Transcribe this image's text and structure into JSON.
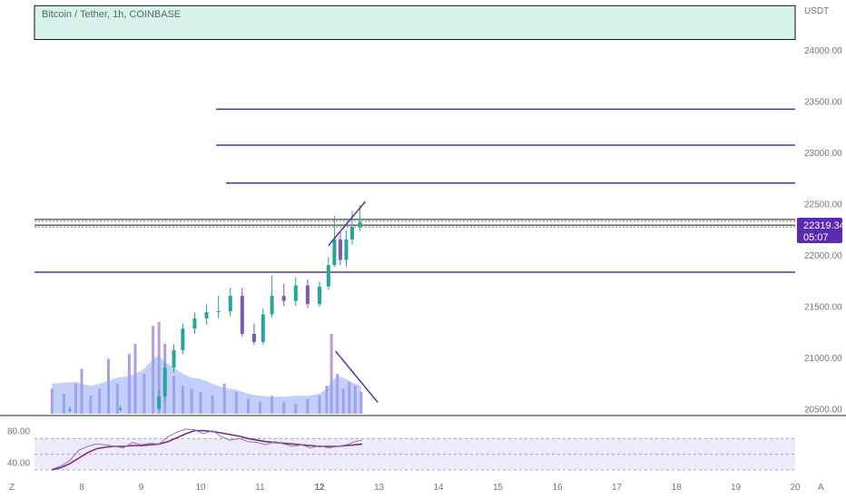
{
  "header": {
    "symbol": "Bitcoin / Tether, 1h, COINBASE",
    "currency": "USDT"
  },
  "price_tag": {
    "price": "22319.34",
    "countdown": "05:07"
  },
  "corner": {
    "left": "Z",
    "right": "A"
  },
  "colors": {
    "up": "#26a69a",
    "down": "#7e57c2",
    "level": "#5b2ab2",
    "zone_fill": "#d6f3ec",
    "volume_ma": "#8ea7f5",
    "volume_bar": "#a78bd8",
    "rsi": "#7b2f6a",
    "rsi_band": "#efeaf9"
  },
  "chart_data": [
    {
      "type": "candlestick",
      "title": "Bitcoin / Tether, 1h, COINBASE",
      "y_unit": "USDT",
      "ylim": [
        20450,
        24450
      ],
      "x_ticks": [
        "8",
        "9",
        "10",
        "11",
        "12",
        "13",
        "14",
        "15",
        "16",
        "17",
        "18",
        "19",
        "20"
      ],
      "y_ticks": [
        "24000.00",
        "23500.00",
        "23000.00",
        "22500.00",
        "22000.00",
        "21500.00",
        "21000.00",
        "20500.00"
      ],
      "last_price": 22319.34,
      "key_zone": [
        24100,
        24430
      ],
      "horizontal_levels": [
        23420,
        23070,
        22700,
        21830
      ],
      "price_lines": [
        22345,
        22290
      ],
      "series": [
        {
          "x": [
            7.8,
            8.65,
            9.3,
            9.4,
            9.55,
            9.7,
            9.9,
            10.1,
            10.3,
            10.5,
            10.7,
            10.9,
            11.05,
            11.2,
            11.4,
            11.6,
            11.8,
            12.0,
            12.15,
            12.25,
            12.35,
            12.45,
            12.55,
            12.68
          ],
          "open": [
            20480,
            20490,
            20500,
            20620,
            20900,
            21070,
            21280,
            21380,
            21440,
            21450,
            21600,
            21230,
            21150,
            21420,
            21600,
            21550,
            21700,
            21520,
            21690,
            21900,
            22150,
            21950,
            22150,
            22270
          ],
          "close": [
            20490,
            20500,
            20620,
            20900,
            21070,
            21280,
            21380,
            21440,
            21450,
            21600,
            21230,
            21150,
            21420,
            21600,
            21550,
            21700,
            21520,
            21690,
            21900,
            22150,
            21950,
            22150,
            22270,
            22319.34
          ],
          "high": [
            20520,
            20530,
            20680,
            20950,
            21130,
            21330,
            21440,
            21520,
            21600,
            21680,
            21680,
            21330,
            21480,
            21800,
            21720,
            21780,
            21760,
            21740,
            21980,
            22380,
            22220,
            22240,
            22430,
            22480
          ],
          "low": [
            20460,
            20470,
            20480,
            20580,
            20850,
            21030,
            21230,
            21320,
            21380,
            21400,
            21200,
            21120,
            21120,
            21390,
            21500,
            21500,
            21480,
            21490,
            21660,
            21880,
            21900,
            21880,
            22100,
            22230
          ]
        }
      ],
      "trendlines": [
        {
          "x": [
            12.15,
            12.77
          ],
          "y": [
            22090,
            22520
          ]
        },
        {
          "x": [
            12.27,
            12.98
          ],
          "y": [
            21060,
            20560
          ]
        }
      ]
    },
    {
      "type": "bar",
      "name": "volume",
      "x": [
        7.5,
        7.7,
        7.9,
        8.0,
        8.15,
        8.3,
        8.45,
        8.6,
        8.8,
        8.9,
        9.05,
        9.2,
        9.3,
        9.4,
        9.55,
        9.7,
        9.85,
        10.0,
        10.2,
        10.4,
        10.6,
        10.8,
        11.0,
        11.2,
        11.4,
        11.6,
        11.8,
        12.0,
        12.12,
        12.2,
        12.3,
        12.4,
        12.5,
        12.6,
        12.7
      ],
      "values": [
        25,
        20,
        30,
        45,
        18,
        25,
        55,
        30,
        60,
        70,
        40,
        88,
        92,
        70,
        38,
        28,
        25,
        22,
        18,
        30,
        22,
        15,
        12,
        18,
        12,
        10,
        15,
        18,
        28,
        80,
        40,
        25,
        32,
        28,
        22
      ],
      "moving_average": [
        30,
        31,
        32,
        30,
        28,
        30,
        33,
        36,
        38,
        40,
        45,
        55,
        58,
        52,
        46,
        40,
        36,
        35,
        30,
        26,
        24,
        20,
        18,
        17,
        17,
        18,
        18,
        20,
        25,
        32,
        38,
        36,
        33,
        30,
        28
      ]
    },
    {
      "type": "line",
      "name": "RSI",
      "ylim": [
        30,
        90
      ],
      "y_ticks": [
        "80.00",
        "40.00"
      ],
      "bands": [
        70,
        30
      ],
      "midline": 50,
      "x": [
        7.5,
        7.65,
        7.8,
        7.95,
        8.1,
        8.25,
        8.4,
        8.55,
        8.7,
        8.85,
        9.0,
        9.15,
        9.3,
        9.45,
        9.6,
        9.75,
        9.9,
        10.05,
        10.2,
        10.35,
        10.5,
        10.65,
        10.8,
        10.95,
        11.1,
        11.25,
        11.4,
        11.55,
        11.7,
        11.85,
        12.0,
        12.15,
        12.3,
        12.45,
        12.6,
        12.72
      ],
      "values": [
        31,
        35,
        42,
        55,
        60,
        63,
        62,
        60,
        58,
        65,
        62,
        64,
        63,
        72,
        78,
        82,
        81,
        76,
        80,
        72,
        68,
        70,
        66,
        65,
        62,
        66,
        63,
        60,
        62,
        58,
        61,
        58,
        60,
        62,
        66,
        68
      ],
      "moving_average": [
        30,
        33,
        38,
        45,
        52,
        57,
        59,
        60,
        60,
        61,
        61,
        62,
        63,
        66,
        71,
        76,
        80,
        80,
        79,
        77,
        75,
        73,
        70,
        68,
        66,
        65,
        64,
        63,
        62,
        61,
        60,
        60,
        60,
        61,
        62,
        63
      ]
    }
  ]
}
